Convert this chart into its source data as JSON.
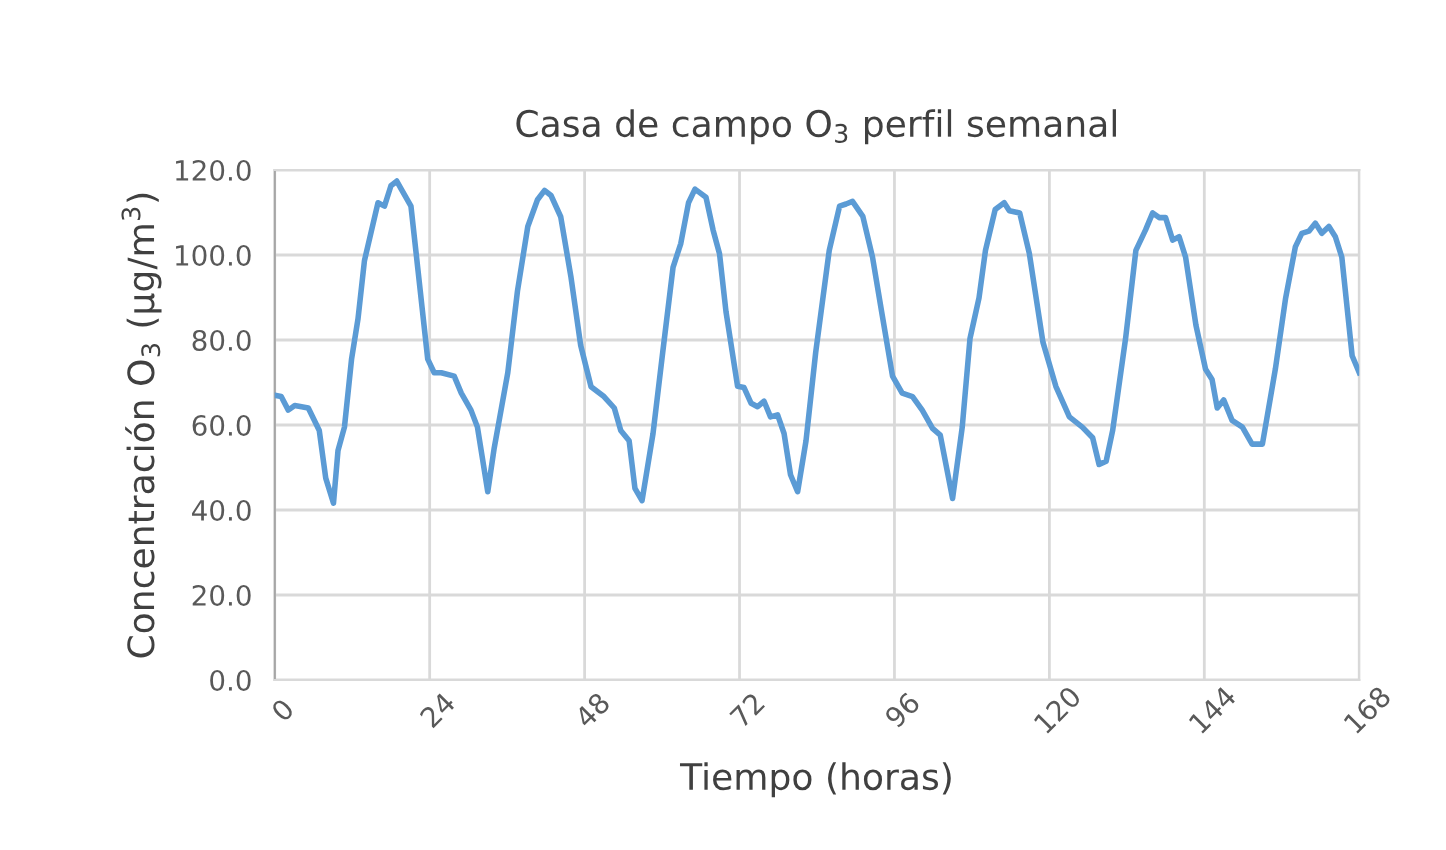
{
  "chart_data": {
    "type": "line",
    "title": "Casa de campo O$_{3}$ perfil semanal",
    "xlabel": "Tiempo (horas)",
    "ylabel": "Concentración O$_{3}$ (µg/m$^{3}$)",
    "xlim": [
      0,
      168
    ],
    "xticks": [
      0,
      24,
      48,
      72,
      96,
      120,
      144,
      168
    ],
    "ylim": [
      0,
      120
    ],
    "yticks": [
      {
        "value": 0,
        "label": "0.0"
      },
      {
        "value": 20,
        "label": "20.0"
      },
      {
        "value": 40,
        "label": "40.0"
      },
      {
        "value": 60,
        "label": "60.0"
      },
      {
        "value": 80,
        "label": "80.0"
      },
      {
        "value": 100,
        "label": "100.0"
      },
      {
        "value": 120,
        "label": "120.0"
      }
    ],
    "grid": true,
    "marker": "none",
    "line_style": "solid",
    "series": [
      {
        "color": "#5b9bd5",
        "x": [
          0,
          1,
          2.1,
          3.1,
          5.2,
          6.9,
          7.9,
          9.1,
          9.8,
          10.8,
          11.9,
          12.9,
          13.9,
          16,
          17,
          18,
          18.9,
          19.6,
          21.1,
          22.2,
          23.7,
          24.7,
          25.8,
          27.8,
          28.9,
          30.4,
          31.4,
          33,
          34,
          36.1,
          37.6,
          39.2,
          40.7,
          41.8,
          42.8,
          44.3,
          45.9,
          47.4,
          49,
          51,
          52.6,
          53.6,
          54.9,
          55.8,
          56.9,
          58.6,
          60.1,
          61.7,
          62.9,
          64.1,
          65.1,
          66.8,
          67.9,
          68.9,
          69.9,
          71.7,
          72.7,
          73.8,
          74.8,
          75.8,
          76.8,
          77.9,
          78.9,
          79.9,
          81,
          82.3,
          83.8,
          85.9,
          87.5,
          88.5,
          89.5,
          91.1,
          92.6,
          94.1,
          95.7,
          97.2,
          98.8,
          100.3,
          101.9,
          103.1,
          105,
          106.5,
          107.7,
          109.1,
          110.1,
          111.6,
          113,
          113.8,
          115.4,
          116.9,
          119,
          121,
          123.1,
          125.1,
          126.7,
          127.7,
          128.8,
          129.8,
          131.8,
          133.4,
          134.9,
          136,
          137,
          138,
          139.1,
          140.1,
          141.1,
          142.7,
          144.2,
          145.2,
          146,
          147,
          148.3,
          149.9,
          151.4,
          153,
          154,
          155,
          156.6,
          158.1,
          159.1,
          160.2,
          161.2,
          162.2,
          163.3,
          164.3,
          165.3,
          166.9,
          168
        ],
        "values": [
          67,
          66.7,
          63.5,
          64.6,
          64,
          58.7,
          47.5,
          41.6,
          54,
          59.5,
          75.5,
          85,
          98.7,
          112.3,
          111.5,
          116.3,
          117.4,
          115.5,
          111.5,
          96.3,
          75.5,
          72.3,
          72.3,
          71.5,
          67.5,
          63.5,
          59.5,
          44.3,
          54.6,
          72.3,
          91.5,
          106.7,
          113,
          115.2,
          114,
          109,
          94.7,
          78.7,
          69,
          66.7,
          64,
          58.7,
          56.3,
          45.1,
          42.2,
          58,
          77.1,
          97.1,
          102.7,
          112.3,
          115.5,
          113.6,
          105.9,
          100.3,
          86.7,
          69.1,
          68.8,
          65.1,
          64.3,
          65.6,
          61.9,
          62.4,
          58,
          48.3,
          44.3,
          56.3,
          77.1,
          101.1,
          111.5,
          112,
          112.6,
          109.1,
          99.5,
          85.9,
          71.5,
          67.5,
          66.7,
          63.5,
          59.2,
          57.6,
          42.7,
          59.5,
          80.3,
          89.9,
          101.1,
          110.7,
          112.3,
          110.4,
          109.9,
          100.3,
          79.5,
          69.1,
          61.9,
          59.5,
          57,
          50.7,
          51.5,
          58.7,
          80.3,
          101.1,
          105.9,
          109.9,
          108.8,
          108.8,
          103.5,
          104.3,
          99.5,
          83.5,
          73.1,
          70.7,
          64,
          65.9,
          61.1,
          59.5,
          55.5,
          55.5,
          64.3,
          73.1,
          89.9,
          101.9,
          105.1,
          105.6,
          107.5,
          105.1,
          106.7,
          104.3,
          99.5,
          76.3,
          72.3
        ]
      }
    ]
  }
}
